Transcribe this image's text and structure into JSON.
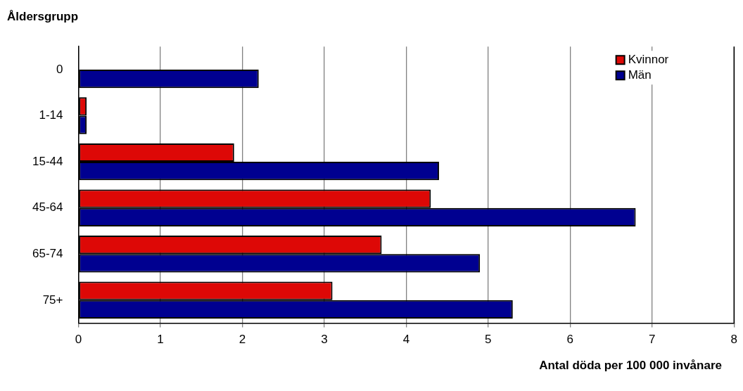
{
  "chart_data": {
    "type": "bar",
    "orientation": "horizontal",
    "ylabel": "Åldersgrupp",
    "xlabel": "Antal döda per 100 000 invånare",
    "categories": [
      "0",
      "1-14",
      "15-44",
      "45-64",
      "65-74",
      "75+"
    ],
    "series": [
      {
        "name": "Kvinnor",
        "color": "#dd0806",
        "values": [
          null,
          0.1,
          1.9,
          4.3,
          3.7,
          3.1
        ]
      },
      {
        "name": "Män",
        "color": "#000090",
        "values": [
          2.2,
          0.1,
          4.4,
          6.8,
          4.9,
          5.3
        ]
      }
    ],
    "xlim": [
      0,
      8
    ],
    "xticks": [
      0,
      1,
      2,
      3,
      4,
      5,
      6,
      7,
      8
    ],
    "grid": "x",
    "legend": "top right"
  }
}
